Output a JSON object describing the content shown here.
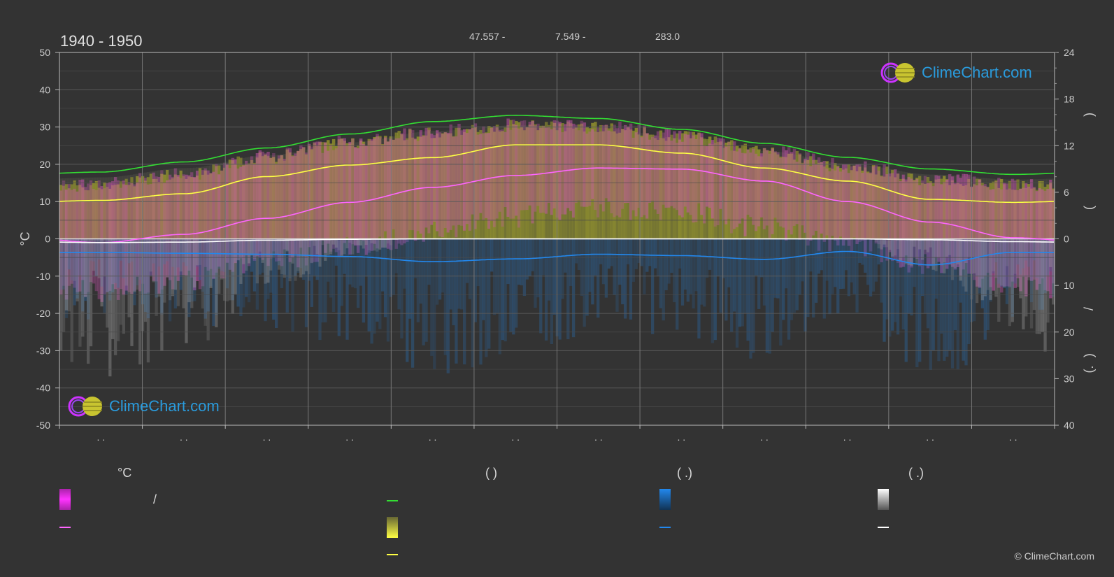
{
  "header": {
    "period": "1940 - 1950",
    "lat_text": "47.557 -",
    "lon_text": "7.549 -",
    "elev_text": "283.0"
  },
  "logo": {
    "text": "ClimeChart.com"
  },
  "copyright": "© ClimeChart.com",
  "legend": {
    "temp_head": "°C",
    "sun_head": "(          )",
    "rain_head": "(   .)",
    "snow_head": "(   .)",
    "temp_range_slash": "/"
  },
  "colors": {
    "background": "#333333",
    "daylight": "#33dd33",
    "sunshine": "#ffff44",
    "temp_mean": "#ff66ff",
    "temp_range": "#dd33dd",
    "rain": "#2288ee",
    "snow": "#ffffff"
  },
  "chart_data": {
    "type": "line",
    "left_axis": {
      "label": "°C",
      "range": [
        -50,
        50
      ],
      "ticks": [
        "50",
        "40",
        "30",
        "20",
        "10",
        "0",
        "-10",
        "-20",
        "-30",
        "-40",
        "-50"
      ]
    },
    "right_axis_top": {
      "range": [
        0,
        24
      ],
      "ticks": [
        "24",
        "18",
        "12",
        "6",
        "0"
      ],
      "labels": [
        ")",
        "("
      ]
    },
    "right_axis_bottom": {
      "range": [
        0,
        40
      ],
      "ticks": [
        "10",
        "20",
        "30",
        "40"
      ],
      "labels": [
        "/",
        ")",
        "(.",
        ""
      ]
    },
    "month_tick_labels": [
      ". .",
      ". .",
      ". .",
      ". .",
      ". .",
      ". .",
      ". .",
      ". .",
      ". .",
      ". .",
      ". .",
      ". ."
    ],
    "grid": true,
    "series": [
      {
        "key": "daylight",
        "axis": "hours",
        "values": [
          8.6,
          9.9,
          11.7,
          13.5,
          15.1,
          15.9,
          15.5,
          14.1,
          12.3,
          10.5,
          9.0,
          8.3
        ]
      },
      {
        "key": "sunshine",
        "axis": "hours",
        "values": [
          4.9,
          5.9,
          8.1,
          9.5,
          10.6,
          12.2,
          12.2,
          11.1,
          9.2,
          7.5,
          5.1,
          4.7
        ]
      },
      {
        "key": "temp_mean",
        "axis": "temp",
        "values": [
          -1.0,
          1.2,
          5.5,
          9.8,
          13.8,
          17.0,
          19.0,
          18.7,
          15.5,
          10.0,
          4.5,
          0.3
        ]
      },
      {
        "key": "temp_max_mean",
        "axis": "temp",
        "values": [
          10.3,
          12.1,
          16.7,
          19.8,
          21.8,
          25.2,
          25.2,
          23.0,
          19.0,
          15.5,
          10.6,
          9.8
        ]
      },
      {
        "key": "rain_mean",
        "axis": "precip",
        "values": [
          2.9,
          3.1,
          3.3,
          3.8,
          4.9,
          4.3,
          3.3,
          3.6,
          4.4,
          2.7,
          5.6,
          2.9
        ]
      },
      {
        "key": "snow_mean",
        "axis": "precip",
        "values": [
          0.8,
          0.7,
          0.3,
          0.1,
          0.0,
          0.0,
          0.0,
          0.0,
          0.0,
          0.0,
          0.2,
          0.6
        ]
      }
    ],
    "envelopes": {
      "temp_max_top": [
        14.5,
        17.5,
        22.0,
        26.0,
        28.5,
        30.5,
        30.0,
        27.5,
        23.5,
        19.5,
        16.0,
        14.5
      ],
      "temp_min_bottom": [
        -14,
        -11,
        -6,
        -2,
        2,
        6,
        8,
        7,
        3,
        -2,
        -7,
        -13
      ],
      "sunshine_top": [
        14.5,
        17.5,
        22.0,
        26.0,
        28.5,
        30.5,
        30.0,
        27.5,
        23.5,
        19.5,
        16.0,
        14.5
      ]
    }
  }
}
